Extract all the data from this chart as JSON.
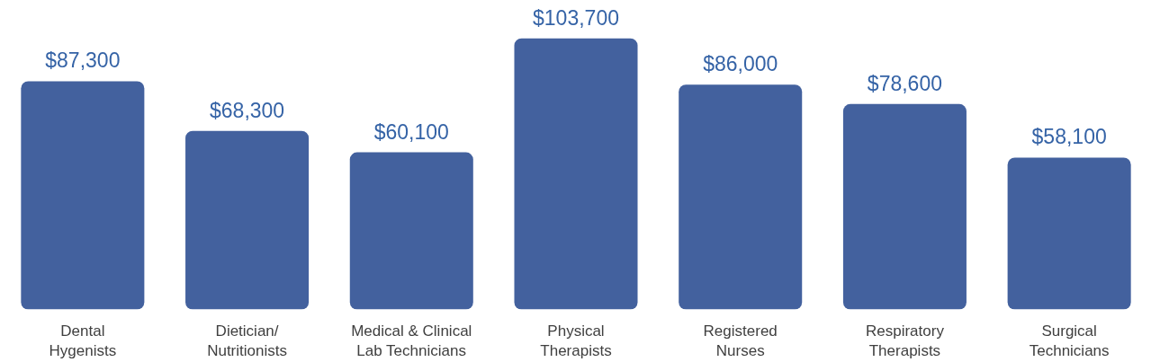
{
  "chart_data": {
    "type": "bar",
    "categories": [
      "Dental\nHygenists",
      "Dietician/\nNutritionists",
      "Medical & Clinical\nLab Technicians",
      "Physical\nTherapists",
      "Registered\nNurses",
      "Respiratory\nTherapists",
      "Surgical\nTechnicians"
    ],
    "values": [
      87300,
      68300,
      60100,
      103700,
      86000,
      78600,
      58100
    ],
    "value_labels": [
      "$87,300",
      "$68,300",
      "$60,100",
      "$103,700",
      "$86,000",
      "$78,600",
      "$58,100"
    ],
    "color": "#43619e",
    "grid": false
  }
}
